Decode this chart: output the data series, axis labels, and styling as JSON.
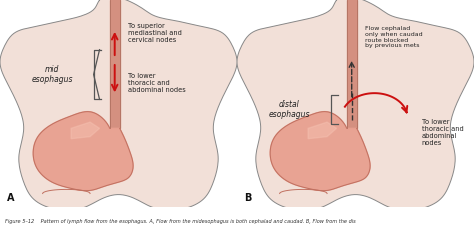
{
  "bg_color": "#f5ede8",
  "body_fill": "#f2e0d8",
  "body_outline": "#888888",
  "stomach_fill": "#e8a090",
  "stomach_highlight": "#f5c0b0",
  "esophagus_fill": "#d49080",
  "esophagus_outline": "#b07060",
  "arrow_red": "#cc1010",
  "arrow_black": "#333333",
  "text_color": "#222222",
  "caption_color": "#333333",
  "panel_A_labels": {
    "mid_esophagus": "mid\nesophagus",
    "to_superior": "To superior\nmediastinal and\ncervical nodes",
    "to_lower": "To lower\nthoracic and\nabdominal nodes"
  },
  "panel_B_labels": {
    "distal_esophagus": "distal\nesophagus",
    "flow_cephalad": "Flow cephalad\nonly when caudad\nroute blocked\nby previous mets",
    "to_lower": "To lower\nthoracic and\nabdominal\nnodes"
  },
  "panel_A_letter": "A",
  "panel_B_letter": "B",
  "caption_text": "Figure 5–12    Pattern of lymph flow from the esophagus. A, Flow from the midesophagus is both cephalad and caudad. B, Flow from the dis"
}
